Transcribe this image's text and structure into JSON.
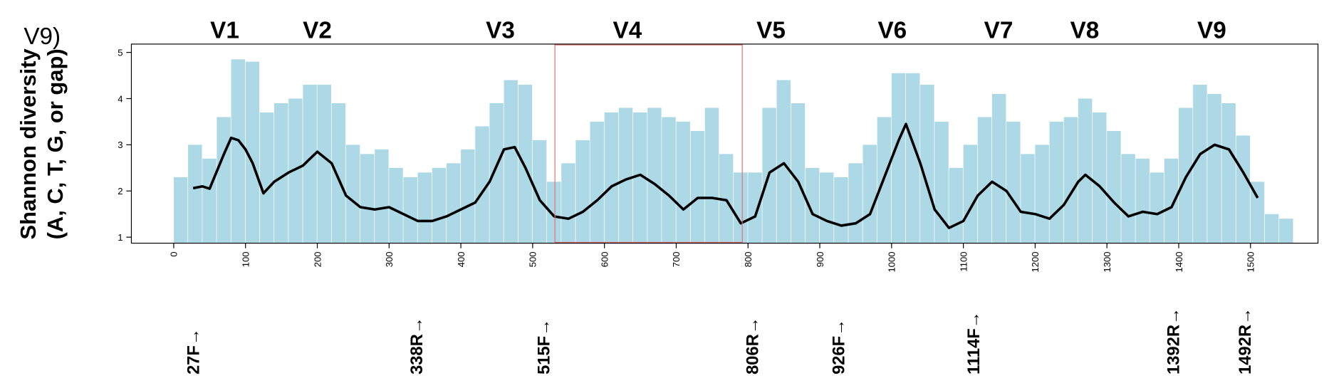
{
  "chart_data": {
    "type": "bar",
    "title": "V9)",
    "y_label": [
      "Shannon diversity",
      "(A, C, T, G, or gap)"
    ],
    "xlim": [
      -59,
      1594
    ],
    "ylim": [
      0.87,
      5.18
    ],
    "xticks": [
      0,
      100,
      200,
      300,
      400,
      500,
      600,
      700,
      800,
      900,
      1000,
      1100,
      1200,
      1300,
      1400,
      1500
    ],
    "yticks": [
      1,
      2,
      3,
      4,
      5
    ],
    "bar_width": 20,
    "highlight": {
      "xlim": [
        531,
        792
      ],
      "color": "#e07070"
    },
    "regions": [
      {
        "name": "V1",
        "x": 71
      },
      {
        "name": "V2",
        "x": 200
      },
      {
        "name": "V3",
        "x": 455
      },
      {
        "name": "V4",
        "x": 632
      },
      {
        "name": "V5",
        "x": 832
      },
      {
        "name": "V6",
        "x": 1001
      },
      {
        "name": "V7",
        "x": 1149
      },
      {
        "name": "V8",
        "x": 1269
      },
      {
        "name": "V9",
        "x": 1446
      }
    ],
    "primers": [
      {
        "label": "27F→",
        "x": 27
      },
      {
        "label": "338R→",
        "x": 338
      },
      {
        "label": "515F→",
        "x": 515
      },
      {
        "label": "806R→",
        "x": 806
      },
      {
        "label": "926F→",
        "x": 926
      },
      {
        "label": "1114F→",
        "x": 1114
      },
      {
        "label": "1392R→",
        "x": 1392
      },
      {
        "label": "1492R→",
        "x": 1492
      }
    ],
    "series": [
      {
        "type": "bar",
        "color": "#add8e6",
        "x": [
          0,
          20,
          40,
          60,
          80,
          100,
          120,
          140,
          160,
          180,
          200,
          220,
          240,
          260,
          280,
          300,
          320,
          340,
          360,
          380,
          400,
          420,
          440,
          460,
          480,
          500,
          520,
          540,
          560,
          580,
          600,
          620,
          640,
          660,
          680,
          700,
          720,
          740,
          760,
          780,
          800,
          820,
          840,
          860,
          880,
          900,
          920,
          940,
          960,
          980,
          1000,
          1020,
          1040,
          1060,
          1080,
          1100,
          1120,
          1140,
          1160,
          1180,
          1200,
          1220,
          1240,
          1260,
          1280,
          1300,
          1320,
          1340,
          1360,
          1380,
          1400,
          1420,
          1440,
          1460,
          1480,
          1500,
          1520,
          1540
        ],
        "values": [
          2.3,
          3.0,
          2.7,
          3.6,
          4.85,
          4.8,
          3.7,
          3.9,
          4.0,
          4.3,
          4.3,
          3.9,
          3.0,
          2.8,
          2.9,
          2.5,
          2.3,
          2.4,
          2.5,
          2.6,
          2.9,
          3.4,
          3.9,
          4.4,
          4.3,
          3.1,
          2.2,
          2.6,
          3.1,
          3.5,
          3.7,
          3.8,
          3.7,
          3.8,
          3.6,
          3.5,
          3.3,
          3.8,
          2.8,
          2.4,
          2.4,
          3.8,
          4.4,
          3.9,
          2.5,
          2.4,
          2.3,
          2.6,
          3.0,
          3.6,
          4.55,
          4.55,
          4.3,
          3.5,
          2.5,
          3.0,
          3.6,
          4.1,
          3.5,
          2.8,
          3.0,
          3.5,
          3.6,
          4.0,
          3.7,
          3.3,
          2.8,
          2.7,
          2.4,
          2.7,
          3.8,
          4.3,
          4.1,
          3.9,
          3.2,
          2.2,
          1.5,
          1.4
        ]
      },
      {
        "type": "line",
        "color": "#000000",
        "x": [
          27,
          40,
          50,
          70,
          80,
          90,
          100,
          110,
          125,
          140,
          160,
          180,
          200,
          220,
          240,
          260,
          280,
          300,
          320,
          340,
          360,
          380,
          400,
          420,
          440,
          460,
          475,
          490,
          510,
          530,
          550,
          570,
          590,
          610,
          630,
          650,
          670,
          690,
          710,
          730,
          750,
          770,
          790,
          810,
          830,
          850,
          870,
          890,
          910,
          930,
          950,
          970,
          990,
          1010,
          1020,
          1040,
          1060,
          1080,
          1100,
          1120,
          1140,
          1160,
          1180,
          1200,
          1220,
          1240,
          1260,
          1270,
          1290,
          1310,
          1330,
          1350,
          1370,
          1390,
          1410,
          1430,
          1450,
          1470,
          1490,
          1510
        ],
        "values": [
          2.06,
          2.1,
          2.05,
          2.8,
          3.15,
          3.1,
          2.9,
          2.6,
          1.95,
          2.2,
          2.4,
          2.55,
          2.85,
          2.6,
          1.9,
          1.65,
          1.6,
          1.65,
          1.5,
          1.35,
          1.35,
          1.45,
          1.6,
          1.75,
          2.2,
          2.9,
          2.95,
          2.5,
          1.8,
          1.45,
          1.4,
          1.55,
          1.8,
          2.1,
          2.25,
          2.35,
          2.15,
          1.9,
          1.6,
          1.85,
          1.85,
          1.8,
          1.3,
          1.45,
          2.4,
          2.6,
          2.2,
          1.5,
          1.35,
          1.25,
          1.3,
          1.5,
          2.3,
          3.1,
          3.45,
          2.6,
          1.6,
          1.2,
          1.35,
          1.9,
          2.2,
          2.0,
          1.55,
          1.5,
          1.4,
          1.7,
          2.2,
          2.35,
          2.1,
          1.75,
          1.45,
          1.55,
          1.5,
          1.65,
          2.3,
          2.8,
          3.0,
          2.9,
          2.4,
          1.85
        ]
      }
    ]
  }
}
